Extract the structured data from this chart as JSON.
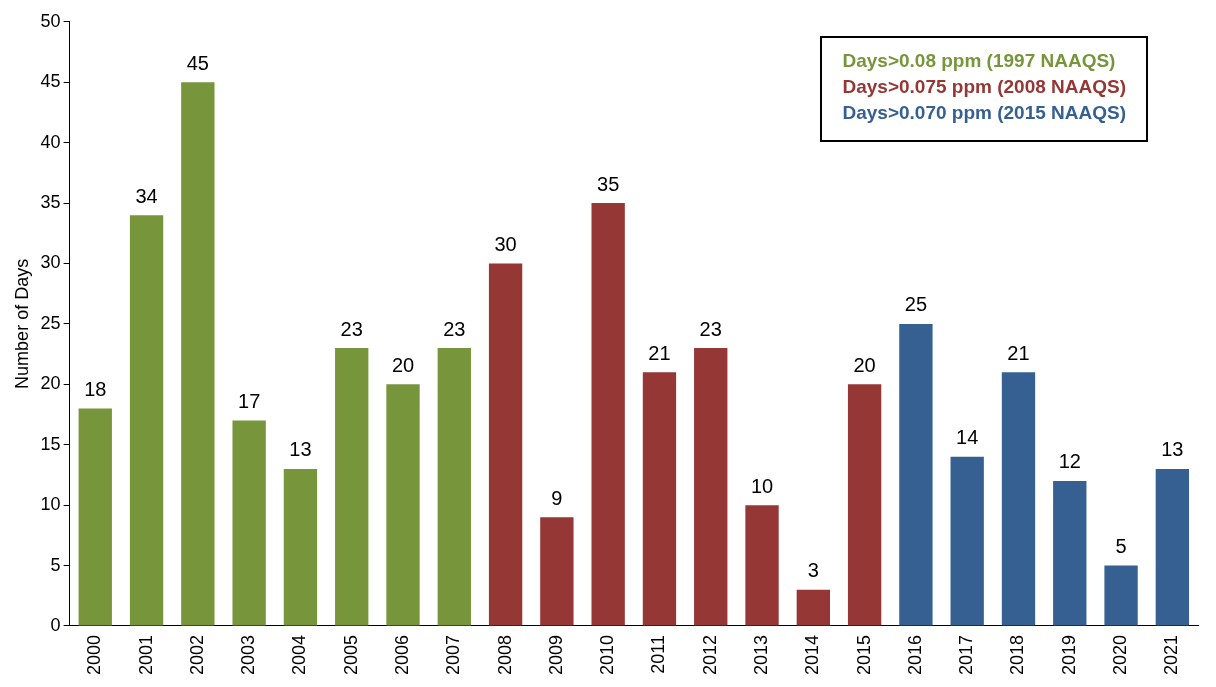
{
  "chart_data": {
    "type": "bar",
    "ylabel": "Number of Days",
    "categories": [
      "2000",
      "2001",
      "2002",
      "2003",
      "2004",
      "2005",
      "2006",
      "2007",
      "2008",
      "2009",
      "2010",
      "2011",
      "2012",
      "2013",
      "2014",
      "2015",
      "2016",
      "2017",
      "2018",
      "2019",
      "2020",
      "2021"
    ],
    "series": [
      {
        "name": "Days>0.08 ppm (1997 NAAQS)",
        "color": "#77963b",
        "values": [
          18,
          34,
          45,
          17,
          13,
          23,
          20,
          23,
          null,
          null,
          null,
          null,
          null,
          null,
          null,
          null,
          null,
          null,
          null,
          null,
          null,
          null
        ]
      },
      {
        "name": "Days>0.075 ppm (2008 NAAQS)",
        "color": "#953735",
        "values": [
          null,
          null,
          null,
          null,
          null,
          null,
          null,
          null,
          30,
          9,
          35,
          21,
          23,
          10,
          3,
          20,
          null,
          null,
          null,
          null,
          null,
          null
        ]
      },
      {
        "name": "Days>0.070 ppm (2015 NAAQS)",
        "color": "#376092",
        "values": [
          null,
          null,
          null,
          null,
          null,
          null,
          null,
          null,
          null,
          null,
          null,
          null,
          null,
          null,
          null,
          null,
          25,
          14,
          21,
          12,
          5,
          13
        ]
      }
    ],
    "ylim": [
      0,
      50
    ],
    "yticks": [
      0,
      5,
      10,
      15,
      20,
      25,
      30,
      35,
      40,
      45,
      50
    ],
    "grid": false,
    "legend": "top right",
    "data_labels": true
  }
}
